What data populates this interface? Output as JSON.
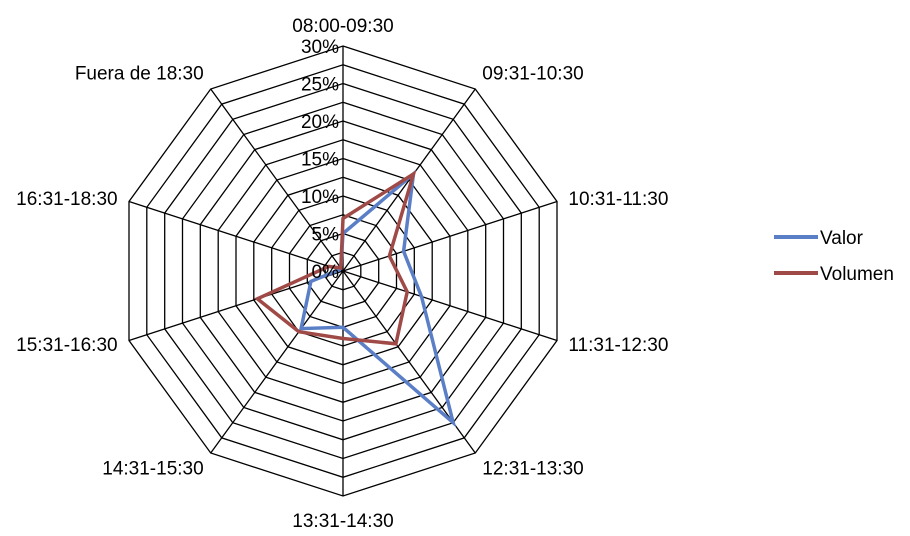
{
  "chart_data": {
    "type": "radar",
    "categories": [
      "08:00-09:30",
      "09:31-10:30",
      "10:31-11:30",
      "11:31-12:30",
      "12:31-13:30",
      "13:31-14:30",
      "14:31-15:30",
      "15:31-16:30",
      "16:31-18:30",
      "Fuera de 18:30"
    ],
    "rlim": [
      0,
      30
    ],
    "ticks": [
      "0%",
      "5%",
      "10%",
      "15%",
      "20%",
      "25%",
      "30%"
    ],
    "tick_values": [
      0,
      5,
      10,
      15,
      20,
      25,
      30
    ],
    "minor_step": 2.5,
    "series": [
      {
        "name": "Valor",
        "color": "#5b7fc7",
        "values": [
          5,
          16,
          8.5,
          11,
          25,
          7.5,
          9.5,
          4.5,
          0.5,
          0.5
        ]
      },
      {
        "name": "Volumen",
        "color": "#a04a47",
        "values": [
          7,
          16,
          6.5,
          9,
          12,
          9,
          10,
          12,
          2,
          0.5
        ]
      }
    ],
    "legend_position": "right",
    "grid": true
  }
}
